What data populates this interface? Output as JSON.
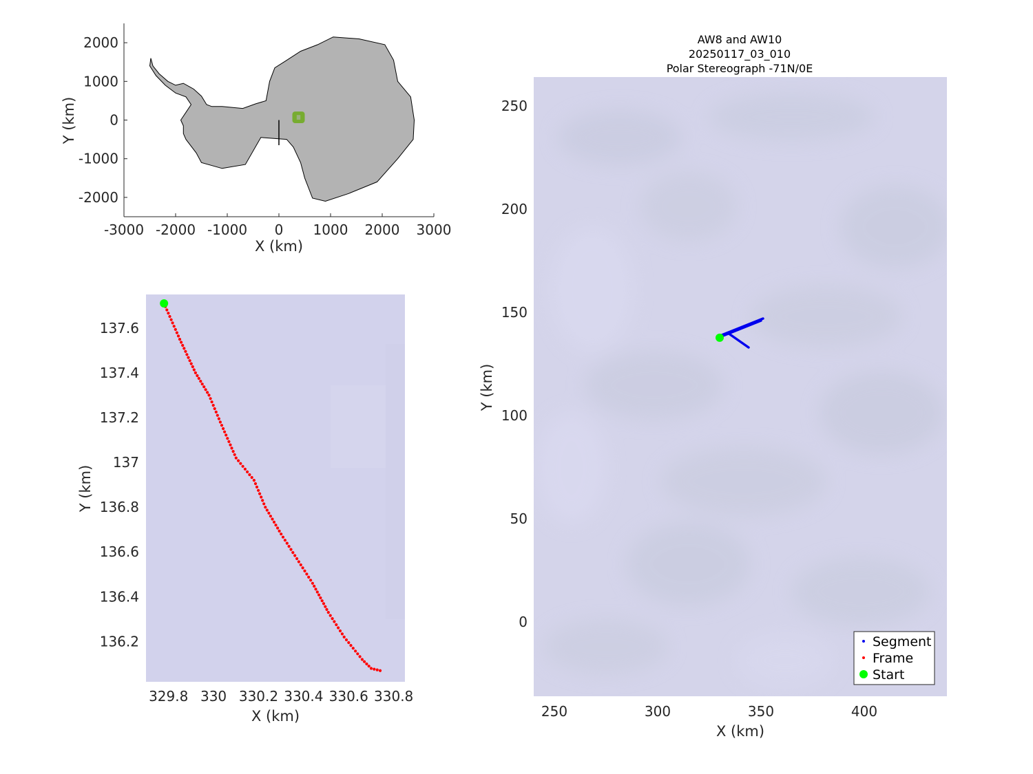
{
  "colors": {
    "land": "#b3b3b3",
    "coast": "#000000",
    "box": "#77ac30",
    "segment": "#0000ee",
    "frame": "#ff0000",
    "start": "#00ff00",
    "imagery_bg": "#d2d2ec",
    "axis": "#262626"
  },
  "chart_data": [
    {
      "name": "overview",
      "type": "map",
      "xlabel": "X (km)",
      "ylabel": "Y (km)",
      "xlim": [
        -3000,
        3000
      ],
      "ylim": [
        -2500,
        2500
      ],
      "xticks": [
        "-3000",
        "-2000",
        "-1000",
        "0",
        "1000",
        "2000",
        "3000"
      ],
      "yticks": [
        "2000",
        "1000",
        "0",
        "-1000",
        "-2000"
      ],
      "coastline_km": [
        [
          -2480,
          1600
        ],
        [
          -2440,
          1400
        ],
        [
          -2320,
          1200
        ],
        [
          -2150,
          1000
        ],
        [
          -2000,
          900
        ],
        [
          -1850,
          950
        ],
        [
          -1650,
          800
        ],
        [
          -1500,
          620
        ],
        [
          -1400,
          400
        ],
        [
          -1300,
          350
        ],
        [
          -1100,
          350
        ],
        [
          -700,
          300
        ],
        [
          -450,
          420
        ],
        [
          -250,
          500
        ],
        [
          -180,
          1000
        ],
        [
          -80,
          1350
        ],
        [
          120,
          1520
        ],
        [
          420,
          1780
        ],
        [
          750,
          1950
        ],
        [
          1050,
          2150
        ],
        [
          1550,
          2100
        ],
        [
          2050,
          1950
        ],
        [
          2220,
          1550
        ],
        [
          2300,
          1000
        ],
        [
          2550,
          600
        ],
        [
          2620,
          0
        ],
        [
          2600,
          -500
        ],
        [
          2300,
          -1000
        ],
        [
          1900,
          -1600
        ],
        [
          1350,
          -1900
        ],
        [
          900,
          -2100
        ],
        [
          650,
          -2020
        ],
        [
          500,
          -1500
        ],
        [
          420,
          -1100
        ],
        [
          280,
          -700
        ],
        [
          150,
          -500
        ],
        [
          -350,
          -450
        ],
        [
          -650,
          -1150
        ],
        [
          -1100,
          -1250
        ],
        [
          -1500,
          -1100
        ],
        [
          -1600,
          -850
        ],
        [
          -1800,
          -500
        ],
        [
          -1850,
          -350
        ],
        [
          -1850,
          -300
        ],
        [
          -1850,
          -150
        ],
        [
          -1900,
          0
        ],
        [
          -1800,
          200
        ],
        [
          -1700,
          400
        ],
        [
          -1800,
          600
        ],
        [
          -2000,
          700
        ],
        [
          -2200,
          900
        ],
        [
          -2380,
          1150
        ],
        [
          -2500,
          1400
        ]
      ],
      "survey_box_km": {
        "x": [
          260,
          500
        ],
        "y": [
          -80,
          220
        ]
      },
      "reference_line_km": {
        "x": [
          0,
          0
        ],
        "y": [
          0,
          -650
        ]
      }
    },
    {
      "name": "frame-detail",
      "type": "scatter",
      "xlabel": "X (km)",
      "ylabel": "Y (km)",
      "xlim": [
        329.7,
        330.85
      ],
      "ylim": [
        136.02,
        137.75
      ],
      "xticks": [
        329.8,
        330,
        330.2,
        330.4,
        330.6,
        330.8
      ],
      "xtick_labels": [
        "329.8",
        "330",
        "330.2",
        "330.4",
        "330.6",
        "330.8"
      ],
      "yticks": [
        137.6,
        137.4,
        137.2,
        137,
        136.8,
        136.6,
        136.4,
        136.2
      ],
      "ytick_labels": [
        "137.6",
        "137.4",
        "137.2",
        "137",
        "136.8",
        "136.6",
        "136.4",
        "136.2"
      ],
      "frame_track": {
        "x": [
          329.78,
          329.85,
          329.92,
          329.98,
          330.03,
          330.1,
          330.18,
          330.23,
          330.3,
          330.37,
          330.44,
          330.51,
          330.58,
          330.66,
          330.7,
          330.74
        ],
        "y": [
          137.71,
          137.55,
          137.4,
          137.3,
          137.18,
          137.02,
          136.92,
          136.8,
          136.68,
          136.57,
          136.46,
          136.33,
          136.22,
          136.12,
          136.08,
          136.07
        ]
      },
      "start": {
        "x": 329.78,
        "y": 137.71
      }
    },
    {
      "name": "segment-map",
      "type": "map",
      "title": [
        "AW8 and AW10",
        "20250117_03_010",
        "Polar Stereograph -71N/0E"
      ],
      "xlabel": "X (km)",
      "ylabel": "Y (km)",
      "xlim": [
        240,
        440
      ],
      "ylim": [
        -36,
        264
      ],
      "xticks": [
        250,
        300,
        350,
        400
      ],
      "xtick_labels": [
        "250",
        "300",
        "350",
        "400"
      ],
      "yticks": [
        250,
        200,
        150,
        100,
        50,
        0
      ],
      "ytick_labels": [
        "250",
        "200",
        "150",
        "100",
        "50",
        "0"
      ],
      "segment_lines": [
        {
          "x": [
            330,
            350
          ],
          "y": [
            138,
            146
          ]
        },
        {
          "x": [
            331,
            351
          ],
          "y": [
            139,
            147
          ]
        },
        {
          "x": [
            334,
            344
          ],
          "y": [
            140,
            133
          ]
        }
      ],
      "start": {
        "x": 330,
        "y": 137.7
      },
      "legend": {
        "placement": "bottom-right",
        "entries": [
          "Segment",
          "Frame",
          "Start"
        ]
      }
    }
  ]
}
